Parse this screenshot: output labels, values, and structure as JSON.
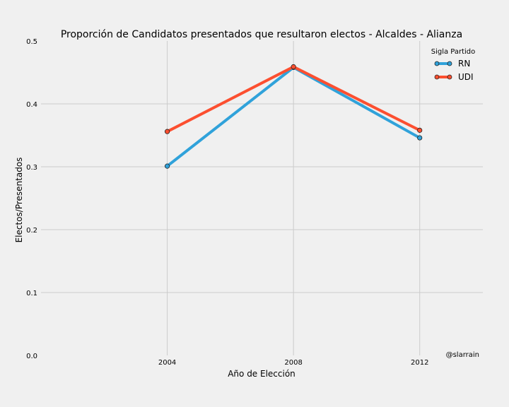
{
  "chart_data": {
    "type": "line",
    "title": "Proporción de Candidatos presentados que resultaron electos - Alcaldes - Alianza",
    "xlabel": "Año de Elección",
    "ylabel": "Electos/Presentados",
    "x": [
      2004,
      2008,
      2012
    ],
    "x_tick_labels": [
      "2004",
      "2008",
      "2012"
    ],
    "xlim": [
      2000,
      2014
    ],
    "ylim": [
      0.0,
      0.5
    ],
    "y_ticks": [
      0.0,
      0.1,
      0.2,
      0.3,
      0.4,
      0.5
    ],
    "y_tick_labels": [
      "0.0",
      "0.1",
      "0.2",
      "0.3",
      "0.4",
      "0.5"
    ],
    "grid": true,
    "legend": {
      "title": "Sigla Partido",
      "placement": "top-right"
    },
    "series": [
      {
        "name": "RN",
        "color": "#30a2da",
        "values": [
          0.301,
          0.458,
          0.346
        ]
      },
      {
        "name": "UDI",
        "color": "#fc4f30",
        "values": [
          0.356,
          0.459,
          0.358
        ]
      }
    ],
    "annotation": "@slarrain"
  }
}
